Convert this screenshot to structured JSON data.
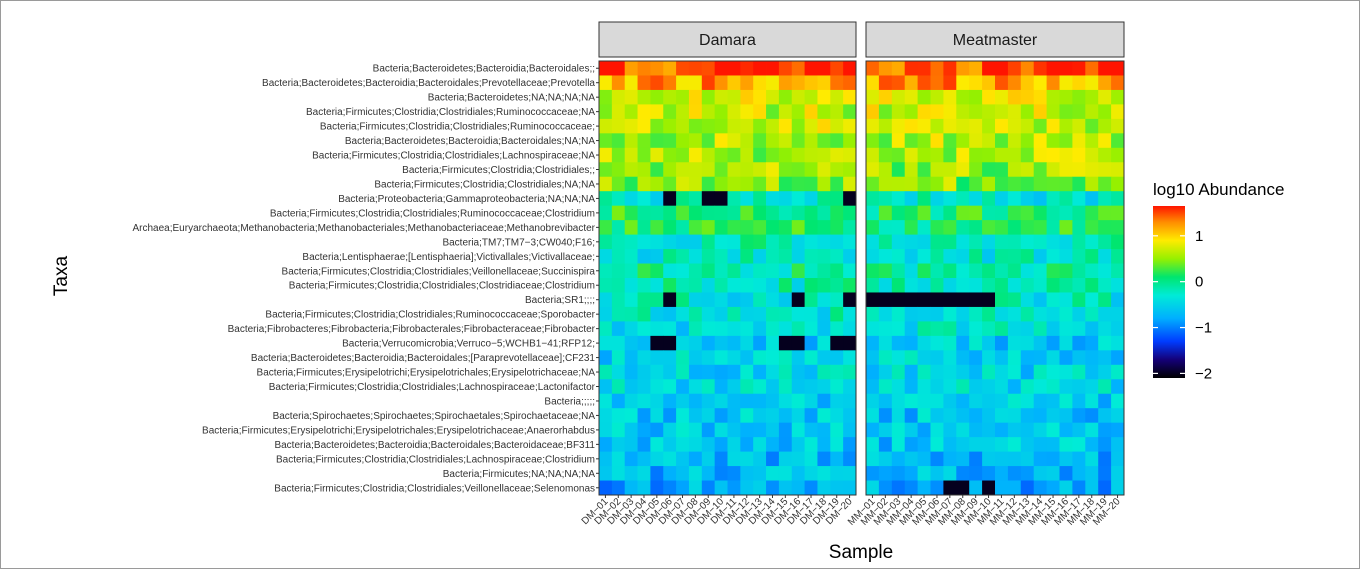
{
  "chart_data": {
    "type": "heatmap",
    "xlabel": "Sample",
    "ylabel": "Taxa",
    "legend": {
      "title": "log10 Abundance",
      "position": "right",
      "range": [
        -2.1,
        1.65
      ],
      "ticks": [
        1,
        0,
        -1,
        -2
      ],
      "tick_labels": [
        "1",
        "0",
        "−1",
        "−2"
      ]
    },
    "facets": [
      {
        "label": "Damara",
        "samples": [
          "DM−01",
          "DM−02",
          "DM−03",
          "DM−04",
          "DM−05",
          "DM−06",
          "DM−07",
          "DM−08",
          "DM−09",
          "DM−10",
          "DM−11",
          "DM−12",
          "DM−13",
          "DM−14",
          "DM−15",
          "DM−16",
          "DM−17",
          "DM−18",
          "DM−19",
          "DM−20"
        ]
      },
      {
        "label": "Meatmaster",
        "samples": [
          "MM−01",
          "MM−02",
          "MM−03",
          "MM−04",
          "MM−05",
          "MM−06",
          "MM−07",
          "MM−08",
          "MM−09",
          "MM−10",
          "MM−11",
          "MM−12",
          "MM−13",
          "MM−14",
          "MM−15",
          "MM−16",
          "MM−17",
          "MM−18",
          "MM−19",
          "MM−20"
        ]
      }
    ],
    "taxa": [
      "Bacteria;Bacteroidetes;Bacteroidia;Bacteroidales;;",
      "Bacteria;Bacteroidetes;Bacteroidia;Bacteroidales;Prevotellaceae;Prevotella",
      "Bacteria;Bacteroidetes;NA;NA;NA;NA",
      "Bacteria;Firmicutes;Clostridia;Clostridiales;Ruminococcaceae;NA",
      "Bacteria;Firmicutes;Clostridia;Clostridiales;Ruminococcaceae;",
      "Bacteria;Bacteroidetes;Bacteroidia;Bacteroidales;NA;NA",
      "Bacteria;Firmicutes;Clostridia;Clostridiales;Lachnospiraceae;NA",
      "Bacteria;Firmicutes;Clostridia;Clostridiales;;",
      "Bacteria;Firmicutes;Clostridia;Clostridiales;NA;NA",
      "Bacteria;Proteobacteria;Gammaproteobacteria;NA;NA;NA",
      "Bacteria;Firmicutes;Clostridia;Clostridiales;Ruminococcaceae;Clostridium",
      "Archaea;Euryarchaeota;Methanobacteria;Methanobacteriales;Methanobacteriaceae;Methanobrevibacter",
      "Bacteria;TM7;TM7−3;CW040;F16;",
      "Bacteria;Lentisphaerae;[Lentisphaeria];Victivallales;Victivallaceae;",
      "Bacteria;Firmicutes;Clostridia;Clostridiales;Veillonellaceae;Succinispira",
      "Bacteria;Firmicutes;Clostridia;Clostridiales;Clostridiaceae;Clostridium",
      "Bacteria;SR1;;;;",
      "Bacteria;Firmicutes;Clostridia;Clostridiales;Ruminococcaceae;Sporobacter",
      "Bacteria;Fibrobacteres;Fibrobacteria;Fibrobacterales;Fibrobacteraceae;Fibrobacter",
      "Bacteria;Verrucomicrobia;Verruco−5;WCHB1−41;RFP12;",
      "Bacteria;Bacteroidetes;Bacteroidia;Bacteroidales;[Paraprevotellaceae];CF231",
      "Bacteria;Firmicutes;Erysipelotrichi;Erysipelotrichales;Erysipelotrichaceae;NA",
      "Bacteria;Firmicutes;Clostridia;Clostridiales;Lachnospiraceae;Lactonifactor",
      "Bacteria;;;;;",
      "Bacteria;Spirochaetes;Spirochaetes;Spirochaetales;Spirochaetaceae;NA",
      "Bacteria;Firmicutes;Erysipelotrichi;Erysipelotrichales;Erysipelotrichaceae;Anaerorhabdus",
      "Bacteria;Bacteroidetes;Bacteroidia;Bacteroidales;Bacteroidaceae;BF311",
      "Bacteria;Firmicutes;Clostridia;Clostridiales;Lachnospiraceae;Clostridium",
      "Bacteria;Firmicutes;NA;NA;NA;NA",
      "Bacteria;Firmicutes;Clostridia;Clostridiales;Veillonellaceae;Selenomonas"
    ],
    "row_typical_values": [
      1.5,
      1.2,
      0.75,
      0.7,
      0.65,
      0.6,
      0.55,
      0.5,
      0.45,
      -0.3,
      0.1,
      0.1,
      -0.2,
      -0.3,
      -0.1,
      -0.2,
      -0.3,
      -0.3,
      -0.4,
      -0.6,
      -0.5,
      -0.5,
      -0.5,
      -0.6,
      -0.6,
      -0.6,
      -0.6,
      -0.7,
      -0.7,
      -0.8
    ],
    "notable_low_cells": [
      {
        "taxon": "Bacteria;SR1;;;;",
        "samples": [
          "MM−01",
          "MM−02",
          "MM−03",
          "MM−04",
          "MM−05",
          "MM−06",
          "MM−07",
          "MM−08",
          "MM−09",
          "MM−10"
        ],
        "value": -2.0
      },
      {
        "taxon": "Bacteria;SR1;;;;",
        "samples": [
          "DM−06",
          "DM−16",
          "DM−20"
        ],
        "value": -2.0
      },
      {
        "taxon": "Bacteria;Proteobacteria;Gammaproteobacteria;NA;NA;NA",
        "samples": [
          "DM−06",
          "DM−09",
          "DM−10",
          "DM−20"
        ],
        "value": -2.0
      },
      {
        "taxon": "Bacteria;Verrucomicrobia;Verruco−5;WCHB1−41;RFP12;",
        "samples": [
          "DM−05",
          "DM−06",
          "DM−15",
          "DM−16",
          "DM−19",
          "DM−20"
        ],
        "value": -2.0
      },
      {
        "taxon": "Bacteria;Firmicutes;Clostridia;Clostridiales;Veillonellaceae;Selenomonas",
        "samples": [
          "MM−07",
          "MM−08",
          "MM−10"
        ],
        "value": -2.0
      }
    ]
  }
}
